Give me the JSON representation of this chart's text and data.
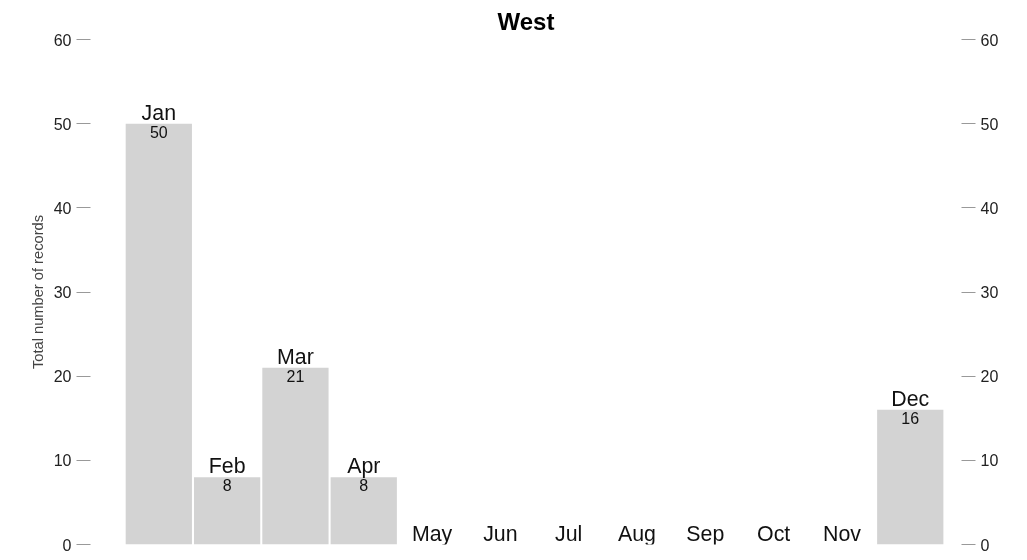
{
  "chart_data": {
    "type": "bar",
    "title": "West",
    "ylabel": "Total number of records",
    "categories": [
      "Jan",
      "Feb",
      "Mar",
      "Apr",
      "May",
      "Jun",
      "Jul",
      "Aug",
      "Sep",
      "Oct",
      "Nov",
      "Dec"
    ],
    "values": [
      50,
      8,
      21,
      8,
      0,
      0,
      0,
      0,
      0,
      0,
      0,
      16
    ],
    "value_labels": [
      "50",
      "8",
      "21",
      "8",
      null,
      null,
      null,
      null,
      null,
      null,
      null,
      "16"
    ],
    "color": "#d3d3d3",
    "ylim": [
      0,
      60
    ],
    "yticks": [
      0,
      10,
      20,
      30,
      40,
      50,
      60
    ],
    "y2lim": [
      0,
      60
    ],
    "y2ticks": [
      0,
      10,
      20,
      30,
      40,
      50,
      60
    ],
    "grid": false
  }
}
